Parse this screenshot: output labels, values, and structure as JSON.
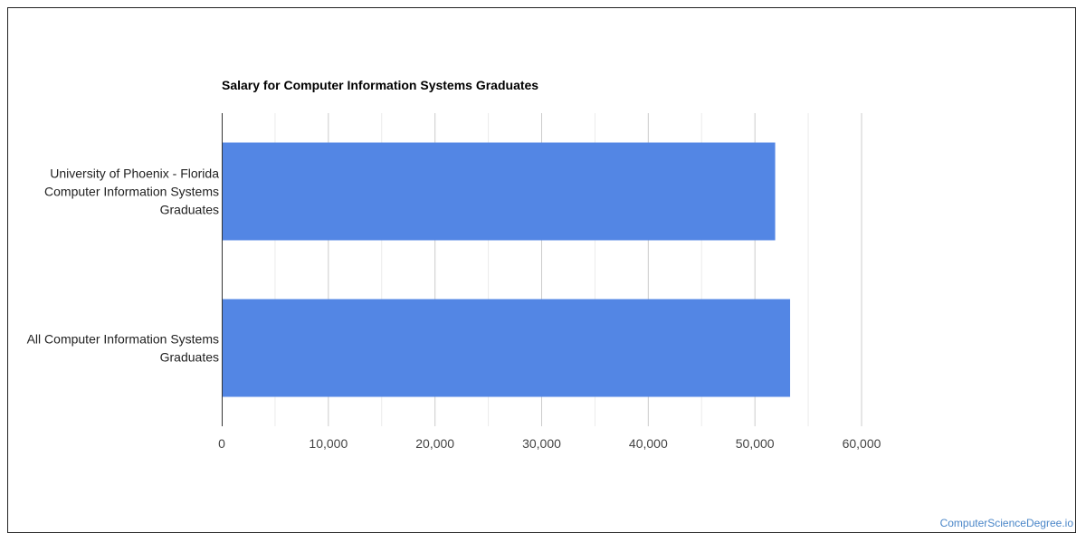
{
  "chart_data": {
    "type": "bar",
    "orientation": "horizontal",
    "title": "Salary for Computer Information Systems Graduates",
    "xlabel": "",
    "ylabel": "",
    "categories": [
      "University of Phoenix - Florida Computer Information Systems Graduates",
      "All Computer Information Systems Graduates"
    ],
    "category_label_lines": [
      [
        "University of Phoenix - Florida",
        "Computer Information Systems",
        "Graduates"
      ],
      [
        "All Computer Information Systems",
        "Graduates"
      ]
    ],
    "values": [
      51900,
      53300
    ],
    "xlim": [
      0,
      60000
    ],
    "xticks": [
      0,
      10000,
      20000,
      30000,
      40000,
      50000,
      60000
    ],
    "xtick_labels": [
      "0",
      "10,000",
      "20,000",
      "30,000",
      "40,000",
      "50,000",
      "60,000"
    ],
    "grid": true,
    "legend": "none",
    "colors": {
      "bar": "#5386e4",
      "gridline": "#cccccc",
      "minor_gridline": "#ebebeb",
      "axis": "#333333"
    }
  },
  "watermark": "ComputerScienceDegree.io"
}
